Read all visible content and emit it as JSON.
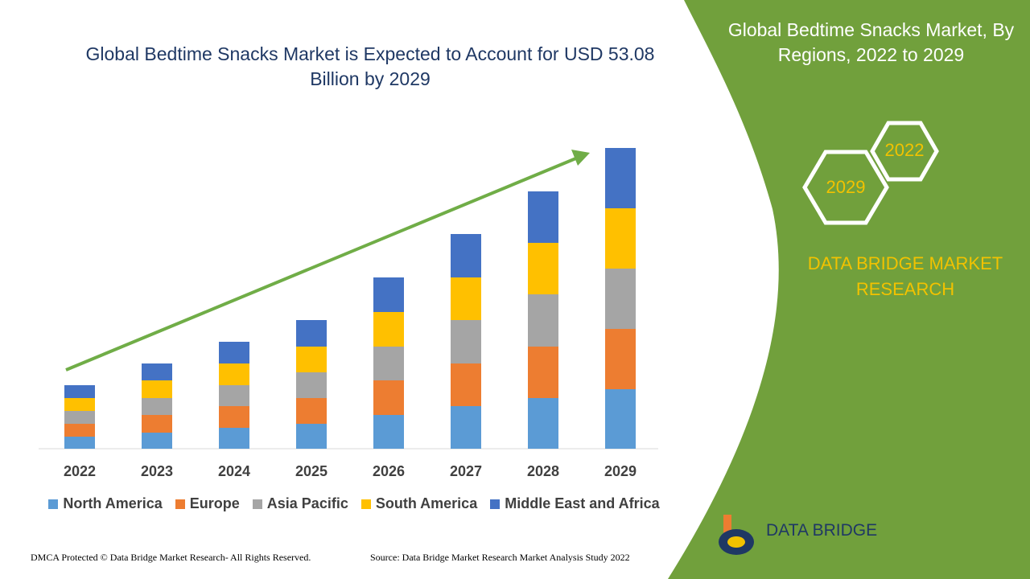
{
  "chart_data": {
    "type": "bar",
    "stacked": true,
    "title": "Global Bedtime Snacks Market is Expected to Account for USD 53.08 Billion by 2029",
    "categories": [
      "2022",
      "2023",
      "2024",
      "2025",
      "2026",
      "2027",
      "2028",
      "2029"
    ],
    "series": [
      {
        "name": "North America",
        "color": "#5b9bd5",
        "values": [
          15,
          20,
          26,
          31,
          42,
          53,
          63,
          74
        ]
      },
      {
        "name": "Europe",
        "color": "#ed7d31",
        "values": [
          16,
          22,
          27,
          32,
          43,
          53,
          64,
          75
        ]
      },
      {
        "name": "Asia Pacific",
        "color": "#a5a5a5",
        "values": [
          16,
          21,
          26,
          32,
          42,
          54,
          65,
          75
        ]
      },
      {
        "name": "South America",
        "color": "#ffc000",
        "values": [
          16,
          22,
          27,
          32,
          43,
          53,
          64,
          75
        ]
      },
      {
        "name": "Middle East and Africa",
        "color": "#4472c4",
        "values": [
          16,
          21,
          27,
          33,
          43,
          54,
          64,
          75
        ]
      }
    ],
    "ylim": [
      0,
      400
    ],
    "grid": false,
    "legend": "bottom"
  },
  "panel": {
    "title": "Global Bedtime Snacks Market, By Regions, 2022 to 2029",
    "hex_front": "2029",
    "hex_back": "2022",
    "brand": "DATA BRIDGE MARKET RESEARCH"
  },
  "logo": {
    "text": "DATA BRIDGE"
  },
  "footer": {
    "left": "DMCA Protected © Data Bridge Market Research- All Rights Reserved.",
    "right": "Source: Data Bridge Market Research Market Analysis Study 2022"
  }
}
